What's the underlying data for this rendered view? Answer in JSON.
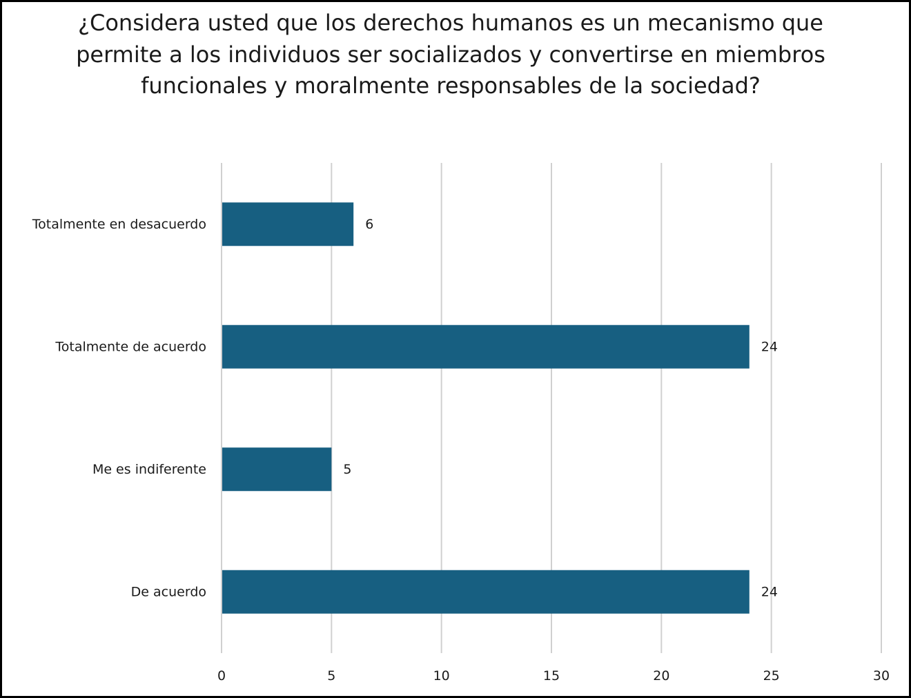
{
  "chart_data": {
    "type": "bar",
    "orientation": "horizontal",
    "title": "¿Considera usted que los derechos humanos es un mecanismo que permite a los individuos ser socializados y convertirse en miembros funcionales y moralmente responsables de la sociedad?",
    "categories": [
      "Totalmente en desacuerdo",
      "Totalmente de acuerdo",
      "Me es indiferente",
      "De acuerdo"
    ],
    "values": [
      6,
      24,
      5,
      24
    ],
    "data_labels": [
      "6",
      "24",
      "5",
      "24"
    ],
    "xlim": [
      0,
      30
    ],
    "xticks": [
      0,
      5,
      10,
      15,
      20,
      25,
      30
    ],
    "xlabel": "",
    "ylabel": "",
    "grid": "vertical",
    "legend": "none",
    "colors": {
      "bar": "#175F81",
      "grid": "#D0D0D0",
      "border": "#000000"
    }
  }
}
